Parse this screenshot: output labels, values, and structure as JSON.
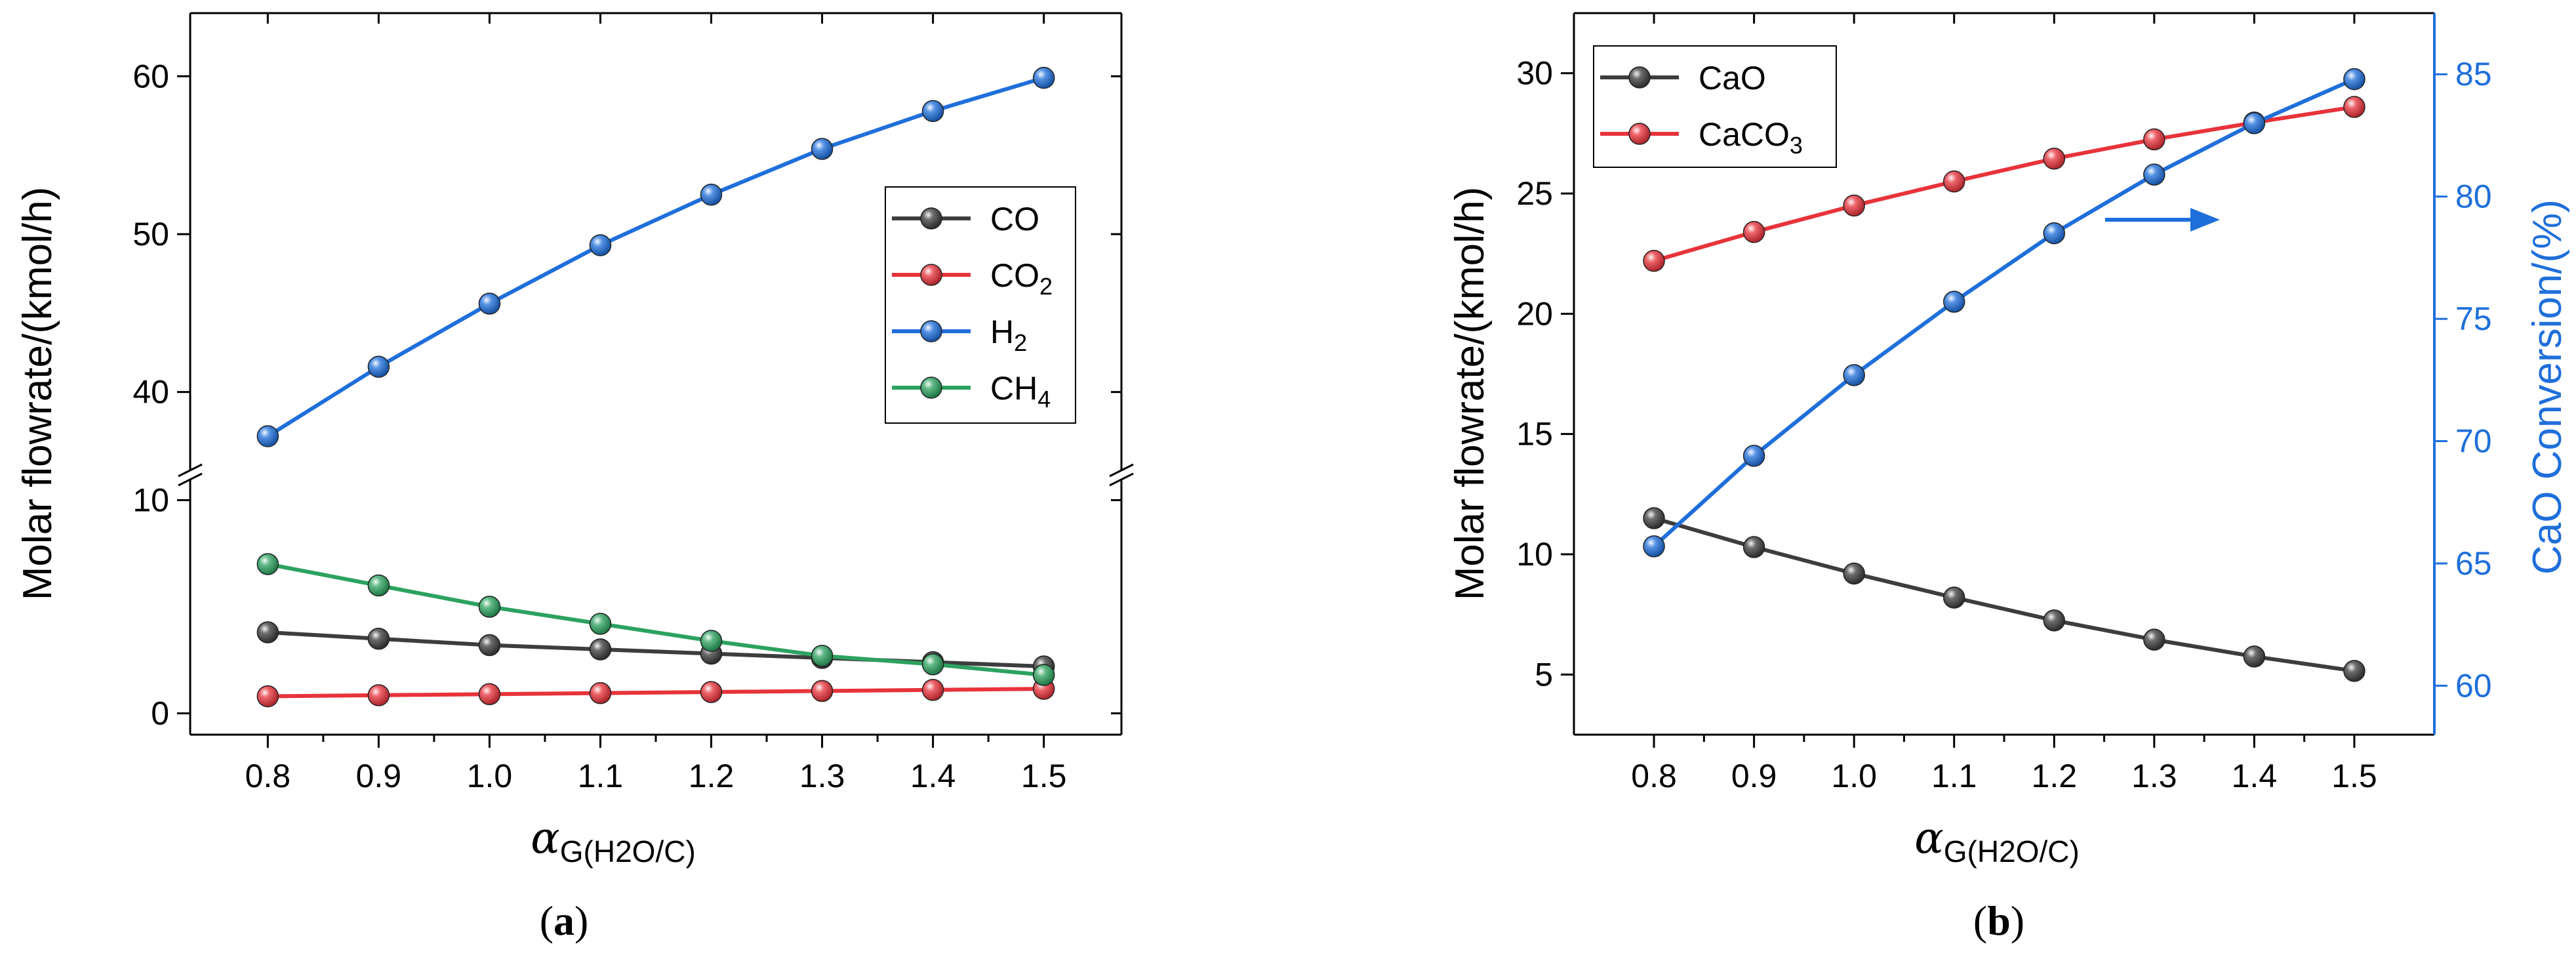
{
  "chart_data": [
    {
      "type": "line",
      "panel_label": "a",
      "x": [
        0.8,
        0.9,
        1.0,
        1.1,
        1.2,
        1.3,
        1.4,
        1.5
      ],
      "x_tick_labels": [
        "0.8",
        "0.9",
        "1.0",
        "1.1",
        "1.2",
        "1.3",
        "1.4",
        "1.5"
      ],
      "xlabel_symbol": "α",
      "xlabel_sub": "G(H2O/C)",
      "ylabel": "Molar flowrate/(kmol/h)",
      "y_axis_break": true,
      "y_lower_ticks": [
        0,
        10
      ],
      "y_upper_ticks": [
        40,
        50,
        60
      ],
      "ylim_lower": [
        -1,
        11
      ],
      "ylim_upper": [
        35,
        64
      ],
      "legend_position": "right-middle",
      "series": [
        {
          "name": "CO",
          "base": "CO",
          "sub": "",
          "color": "#3d3d3d",
          "values": [
            3.8,
            3.5,
            3.2,
            3.0,
            2.8,
            2.6,
            2.4,
            2.2
          ]
        },
        {
          "name": "CO2",
          "base": "CO",
          "sub": "2",
          "color": "#e8333b",
          "values": [
            0.8,
            0.85,
            0.9,
            0.95,
            1.0,
            1.05,
            1.1,
            1.15
          ]
        },
        {
          "name": "H2",
          "base": "H",
          "sub": "2",
          "color": "#1f6fdb",
          "values": [
            37.2,
            41.6,
            45.6,
            49.3,
            52.5,
            55.4,
            57.8,
            59.9
          ]
        },
        {
          "name": "CH4",
          "base": "CH",
          "sub": "4",
          "color": "#2ca25f",
          "values": [
            7.0,
            6.0,
            5.0,
            4.2,
            3.4,
            2.7,
            2.3,
            1.8
          ]
        }
      ]
    },
    {
      "type": "line",
      "panel_label": "b",
      "x": [
        0.8,
        0.9,
        1.0,
        1.1,
        1.2,
        1.3,
        1.4,
        1.5
      ],
      "x_tick_labels": [
        "0.8",
        "0.9",
        "1.0",
        "1.1",
        "1.2",
        "1.3",
        "1.4",
        "1.5"
      ],
      "xlabel_symbol": "α",
      "xlabel_sub": "G(H2O/C)",
      "ylabel": "Molar flowrate/(kmol/h)",
      "y2label": "CaO Conversion/(%)",
      "ylim": [
        2.5,
        32.5
      ],
      "y_ticks": [
        5,
        10,
        15,
        20,
        25,
        30
      ],
      "y2lim": [
        58,
        87.5
      ],
      "y2_ticks": [
        60,
        65,
        70,
        75,
        80,
        85
      ],
      "legend_position": "top-left",
      "series": [
        {
          "name": "CaO",
          "base": "CaO",
          "sub": "",
          "color": "#3d3d3d",
          "axis": "left",
          "values": [
            11.5,
            10.3,
            9.2,
            8.2,
            7.25,
            6.45,
            5.75,
            5.15
          ]
        },
        {
          "name": "CaCO3",
          "base": "CaCO",
          "sub": "3",
          "color": "#e8333b",
          "axis": "left",
          "values": [
            22.2,
            23.4,
            24.5,
            25.5,
            26.45,
            27.25,
            27.95,
            28.6
          ]
        },
        {
          "name": "CaO Conversion",
          "color": "#1f6fdb",
          "axis": "right",
          "in_legend": false,
          "values": [
            65.7,
            69.4,
            72.7,
            75.7,
            78.5,
            80.9,
            83.0,
            84.8
          ]
        }
      ],
      "annotation": {
        "type": "arrow",
        "direction": "right",
        "color": "#1f6fdb"
      }
    }
  ]
}
